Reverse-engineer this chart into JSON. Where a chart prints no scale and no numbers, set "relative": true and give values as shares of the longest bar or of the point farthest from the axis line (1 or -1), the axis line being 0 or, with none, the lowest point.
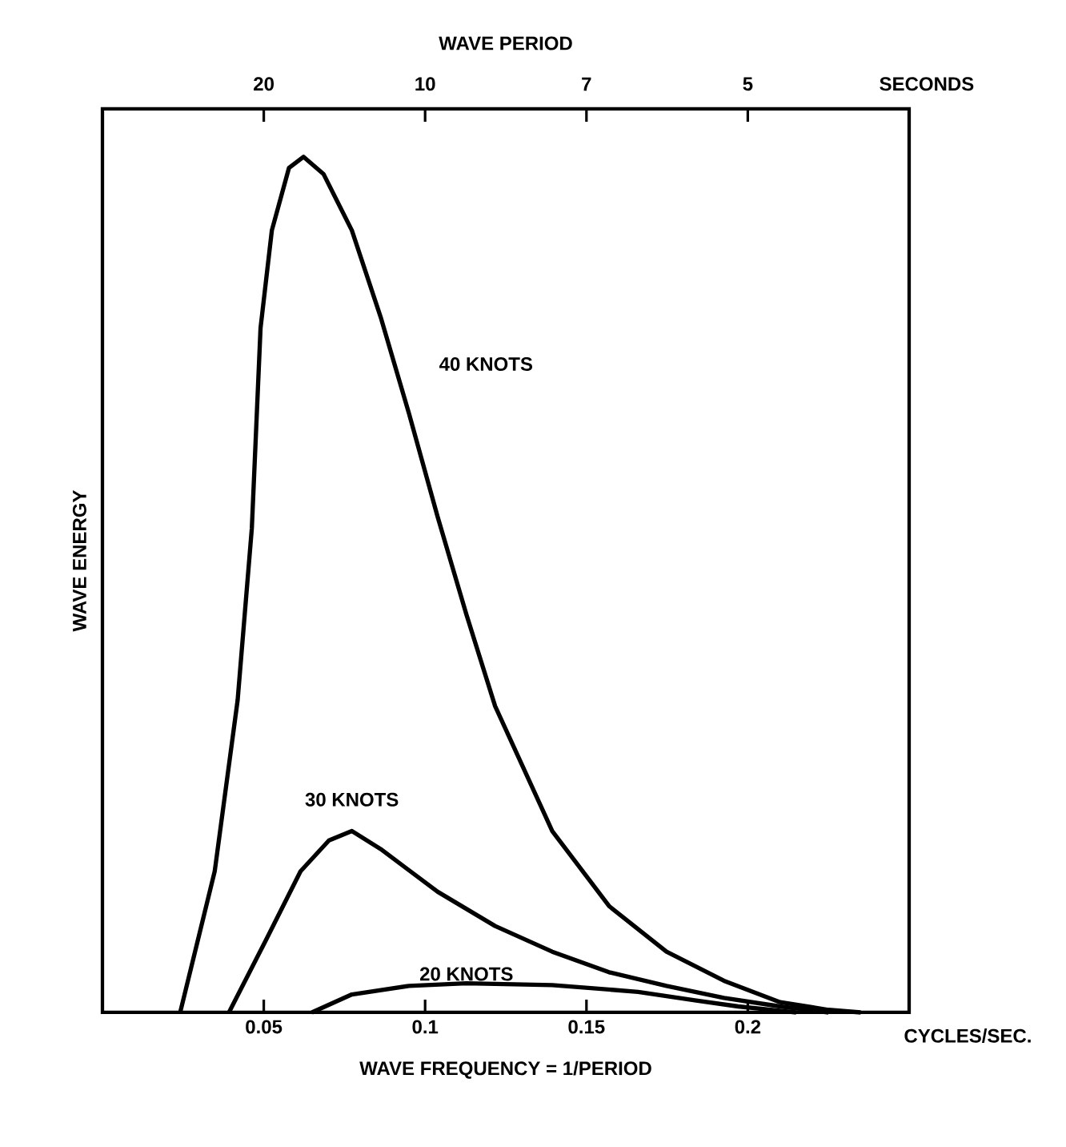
{
  "chart_data": {
    "type": "line",
    "relative": true,
    "xlabel": "WAVE FREQUENCY = 1/PERIOD",
    "ylabel": "WAVE ENERGY",
    "x2label": "WAVE PERIOD",
    "xlim": [
      0,
      0.25
    ],
    "xticks": [
      0.05,
      0.1,
      0.15,
      0.2
    ],
    "annotations": [
      "CYCLES/SEC.",
      "SECONDS",
      "20",
      "10",
      "7",
      "5"
    ],
    "marker": "none",
    "line_style": "solid",
    "series": [
      {
        "name": "40 KNOTS",
        "color": "#000000",
        "x": [
          0.0241,
          0.0348,
          0.0419,
          0.0463,
          0.049,
          0.0525,
          0.0578,
          0.0623,
          0.0685,
          0.0773,
          0.0862,
          0.095,
          0.1039,
          0.1128,
          0.1217,
          0.1394,
          0.1571,
          0.1748,
          0.1926,
          0.21,
          0.225,
          0.235
        ],
        "values": [
          0,
          0.165,
          0.365,
          0.566,
          0.8,
          0.914,
          0.987,
          1.0,
          0.98,
          0.914,
          0.813,
          0.7,
          0.579,
          0.465,
          0.358,
          0.212,
          0.124,
          0.071,
          0.037,
          0.012,
          0.003,
          0
        ]
      },
      {
        "name": "30 KNOTS",
        "color": "#000000",
        "x": [
          0.0392,
          0.0506,
          0.0614,
          0.0702,
          0.0773,
          0.0862,
          0.1039,
          0.1217,
          0.1394,
          0.157,
          0.1748,
          0.1926,
          0.21,
          0.225
        ],
        "values": [
          0,
          0.084,
          0.165,
          0.201,
          0.212,
          0.191,
          0.141,
          0.101,
          0.071,
          0.047,
          0.031,
          0.017,
          0.007,
          0
        ]
      },
      {
        "name": "20 KNOTS",
        "color": "#000000",
        "x": [
          0.0649,
          0.0773,
          0.095,
          0.1128,
          0.1394,
          0.166,
          0.184,
          0.197,
          0.21,
          0.215
        ],
        "values": [
          0,
          0.021,
          0.031,
          0.034,
          0.032,
          0.024,
          0.014,
          0.007,
          0.002,
          0
        ]
      }
    ]
  }
}
